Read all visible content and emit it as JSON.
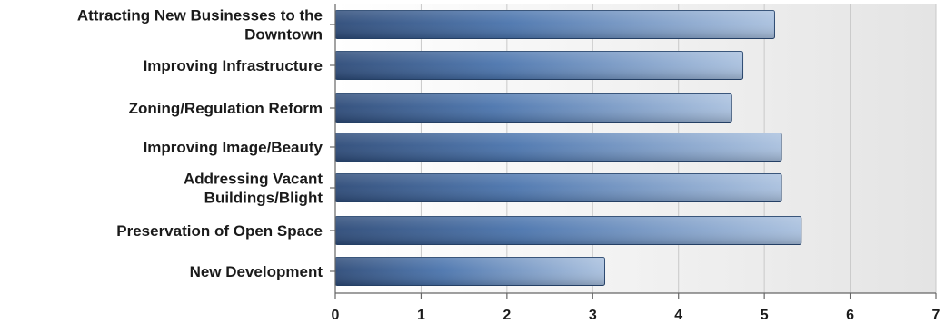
{
  "chart_data": {
    "type": "bar",
    "orientation": "horizontal",
    "title": "",
    "xlabel": "",
    "ylabel": "",
    "categories": [
      [
        "Attracting New Businesses to the",
        "Downtown"
      ],
      [
        "Improving Infrastructure"
      ],
      [
        "Zoning/Regulation Reform"
      ],
      [
        "Improving Image/Beauty"
      ],
      [
        "Addressing Vacant",
        "Buildings/Blight"
      ],
      [
        "Preservation of Open Space"
      ],
      [
        "New Development"
      ]
    ],
    "values": [
      5.12,
      4.75,
      4.62,
      5.2,
      5.2,
      5.43,
      3.14
    ],
    "xlim": [
      0,
      7
    ],
    "x_ticks": [
      "0",
      "1",
      "2",
      "3",
      "4",
      "5",
      "6",
      "7"
    ],
    "grid": true,
    "legend": "none",
    "colors": {
      "bar_dark": "#2c4a78",
      "bar_mid": "#4a74ad",
      "bar_light": "#a9c0de",
      "plot_bg_light": "#ffffff",
      "plot_bg_dark": "#e4e4e4"
    }
  }
}
